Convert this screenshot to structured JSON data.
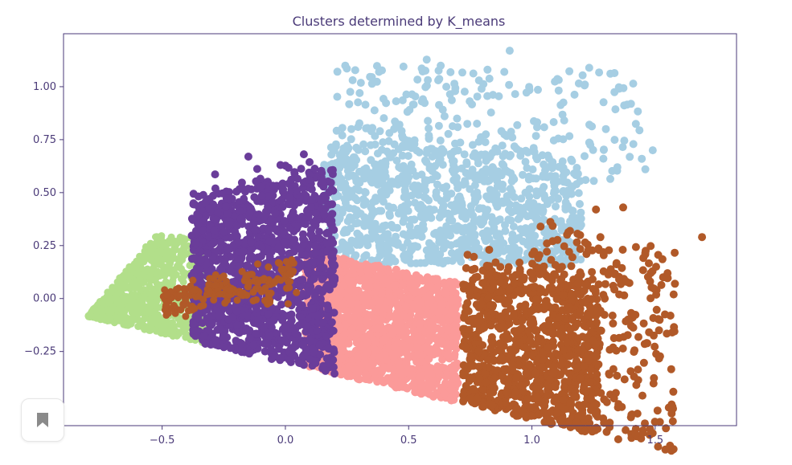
{
  "chart_data": {
    "type": "scatter",
    "title": "Clusters determined by K_means",
    "xlabel": "",
    "ylabel": "",
    "xlim": [
      -0.9,
      1.83
    ],
    "ylim": [
      -0.6,
      1.25
    ],
    "x_ticks": [
      -0.5,
      0.0,
      0.5,
      1.0,
      1.5
    ],
    "x_tick_labels": [
      "−0.5",
      "0.0",
      "0.5",
      "1.0",
      "1.5"
    ],
    "y_ticks": [
      -0.5,
      -0.25,
      0.0,
      0.25,
      0.5,
      0.75,
      1.0
    ],
    "y_tick_labels": [
      "−0.50",
      "−0.25",
      "0.00",
      "0.25",
      "0.50",
      "0.75",
      "1.00"
    ],
    "grid": false,
    "legend": "none",
    "point_density_note": "thousands of points per cluster",
    "series": [
      {
        "color": "#b2df8a",
        "x_range": [
          -0.8,
          -0.33
        ],
        "y_range": [
          -0.17,
          0.32
        ],
        "centroid": [
          -0.5,
          -0.02
        ],
        "approx_points": 1500
      },
      {
        "color": "#6a3d9a",
        "x_range": [
          -0.4,
          0.22
        ],
        "y_range": [
          -0.23,
          0.67
        ],
        "centroid": [
          -0.08,
          0.12
        ],
        "approx_points": 1800
      },
      {
        "color": "#fb9a99",
        "x_range": [
          0.07,
          0.72
        ],
        "y_range": [
          -0.33,
          0.25
        ],
        "centroid": [
          0.4,
          -0.05
        ],
        "approx_points": 2000
      },
      {
        "color": "#a6cee3",
        "x_range": [
          0.1,
          1.5
        ],
        "y_range": [
          0.1,
          1.18
        ],
        "centroid": [
          0.62,
          0.45
        ],
        "approx_points": 1300
      },
      {
        "color": "#b15928",
        "x_range": [
          0.7,
          1.69
        ],
        "y_range": [
          -0.5,
          0.43
        ],
        "centroid": [
          0.98,
          -0.15
        ],
        "approx_points": 1600
      }
    ],
    "overlay_cluster_note": "a brown band inside the purple cluster near x -0.35..0.05, y -0.05..0.2",
    "icons": {
      "bookmark": "bookmark-icon"
    }
  }
}
